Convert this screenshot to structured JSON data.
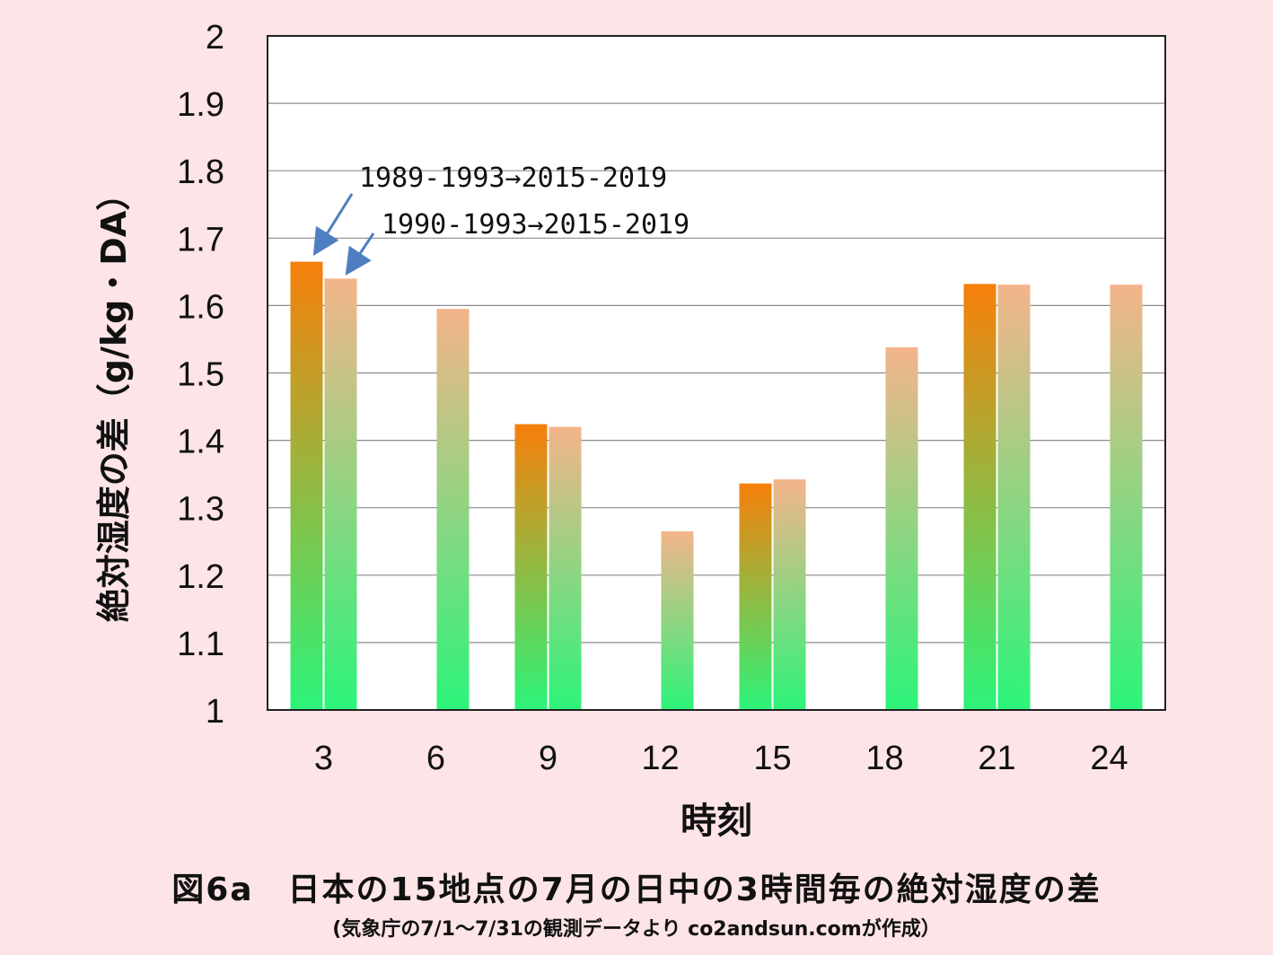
{
  "chart_data": {
    "type": "bar",
    "categories": [
      "3",
      "6",
      "9",
      "12",
      "15",
      "18",
      "21",
      "24"
    ],
    "series": [
      {
        "name": "1989-1993→2015-2019",
        "values": [
          1.665,
          null,
          1.424,
          null,
          1.336,
          null,
          1.632,
          null
        ],
        "color_top": "#f77f0a",
        "color_bottom": "#2cf47a"
      },
      {
        "name": "1990-1993→2015-2019",
        "values": [
          1.64,
          1.595,
          1.42,
          1.265,
          1.342,
          1.538,
          1.631,
          1.631
        ],
        "color_top": "#f4b48a",
        "color_bottom": "#2cf47a"
      }
    ],
    "xlabel": "時刻",
    "ylabel": "絶対湿度の差（g/kg・DA）",
    "ylim": [
      1,
      2
    ],
    "yticks": [
      "1",
      "1.1",
      "1.2",
      "1.3",
      "1.4",
      "1.5",
      "1.6",
      "1.7",
      "1.8",
      "1.9",
      "2"
    ],
    "grid": true,
    "annotations": [
      "1989-1993→2015-2019",
      "1990-1993→2015-2019"
    ],
    "annotation_arrow_color": "#4f7fc0"
  },
  "caption": {
    "title": "図6a　日本の15地点の7月の日中の3時間毎の絶対湿度の差",
    "source": "(気象庁の7/1～7/31の観測データより co2andsun.comが作成）"
  }
}
